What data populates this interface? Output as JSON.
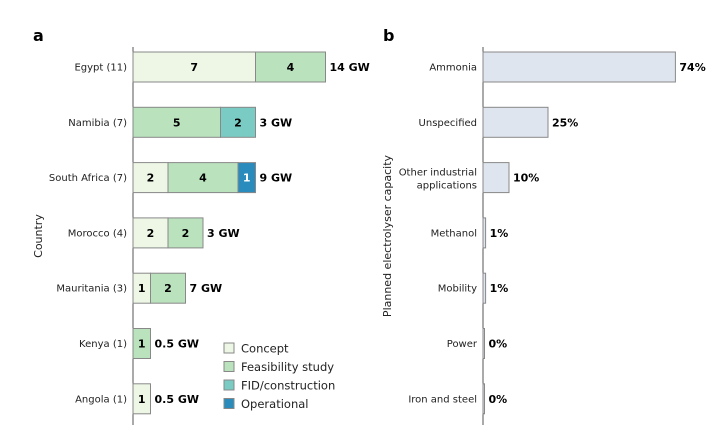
{
  "chart_data": [
    {
      "panel_label": "a",
      "type": "bar",
      "orientation": "horizontal",
      "stacked": true,
      "ylabel": "Country",
      "categories": [
        "Egypt (11)",
        "Namibia (7)",
        "South Africa (7)",
        "Morocco (4)",
        "Mauritania (3)",
        "Kenya (1)",
        "Angola (1)"
      ],
      "series": [
        {
          "name": "Concept",
          "color": "#eef7e6",
          "values": [
            7,
            0,
            2,
            2,
            1,
            0,
            1
          ]
        },
        {
          "name": "Feasibility study",
          "color": "#b9e2bd",
          "values": [
            4,
            5,
            4,
            2,
            2,
            1,
            0
          ]
        },
        {
          "name": "FID/construction",
          "color": "#79cbc4",
          "values": [
            0,
            2,
            0,
            0,
            0,
            0,
            0
          ]
        },
        {
          "name": "Operational",
          "color": "#2a8bbd",
          "values": [
            0,
            0,
            1,
            0,
            0,
            0,
            0
          ]
        }
      ],
      "totals_labels": [
        "14 GW",
        "3 GW",
        "9 GW",
        "3 GW",
        "7 GW",
        "0.5 GW",
        "0.5 GW"
      ],
      "legend_position": "bottom-right",
      "grid": false
    },
    {
      "panel_label": "b",
      "type": "bar",
      "orientation": "horizontal",
      "ylabel": "Planned electrolyser capacity",
      "categories": [
        "Ammonia",
        "Unspecified",
        "Other industrial applications",
        "Methanol",
        "Mobility",
        "Power",
        "Iron and steel"
      ],
      "values": [
        74,
        25,
        10,
        1,
        1,
        0,
        0
      ],
      "value_labels": [
        "74%",
        "25%",
        "10%",
        "1%",
        "1%",
        "0%",
        "0%"
      ],
      "color": "#dfe5ef",
      "grid": false
    }
  ]
}
